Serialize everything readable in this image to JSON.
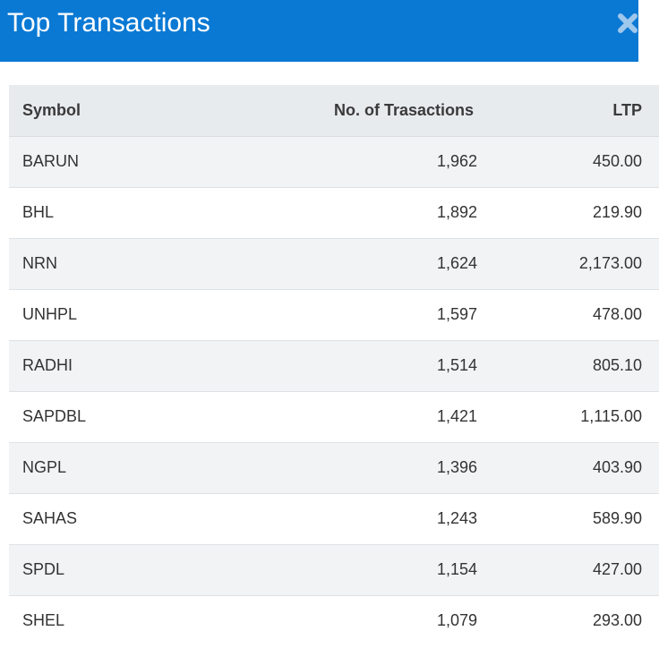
{
  "header": {
    "title": "Top Transactions",
    "close_icon": "close-icon"
  },
  "table": {
    "columns": [
      "Symbol",
      "No. of Trasactions",
      "LTP"
    ],
    "rows": [
      {
        "symbol": "BARUN",
        "transactions": "1,962",
        "ltp": "450.00"
      },
      {
        "symbol": "BHL",
        "transactions": "1,892",
        "ltp": "219.90"
      },
      {
        "symbol": "NRN",
        "transactions": "1,624",
        "ltp": "2,173.00"
      },
      {
        "symbol": "UNHPL",
        "transactions": "1,597",
        "ltp": "478.00"
      },
      {
        "symbol": "RADHI",
        "transactions": "1,514",
        "ltp": "805.10"
      },
      {
        "symbol": "SAPDBL",
        "transactions": "1,421",
        "ltp": "1,115.00"
      },
      {
        "symbol": "NGPL",
        "transactions": "1,396",
        "ltp": "403.90"
      },
      {
        "symbol": "SAHAS",
        "transactions": "1,243",
        "ltp": "589.90"
      },
      {
        "symbol": "SPDL",
        "transactions": "1,154",
        "ltp": "427.00"
      },
      {
        "symbol": "SHEL",
        "transactions": "1,079",
        "ltp": "293.00"
      }
    ]
  },
  "colors": {
    "header_bg": "#0a79d4",
    "header_text": "#ffffff",
    "table_header_bg": "#e8ebee",
    "row_alt_bg": "#f2f3f5"
  }
}
